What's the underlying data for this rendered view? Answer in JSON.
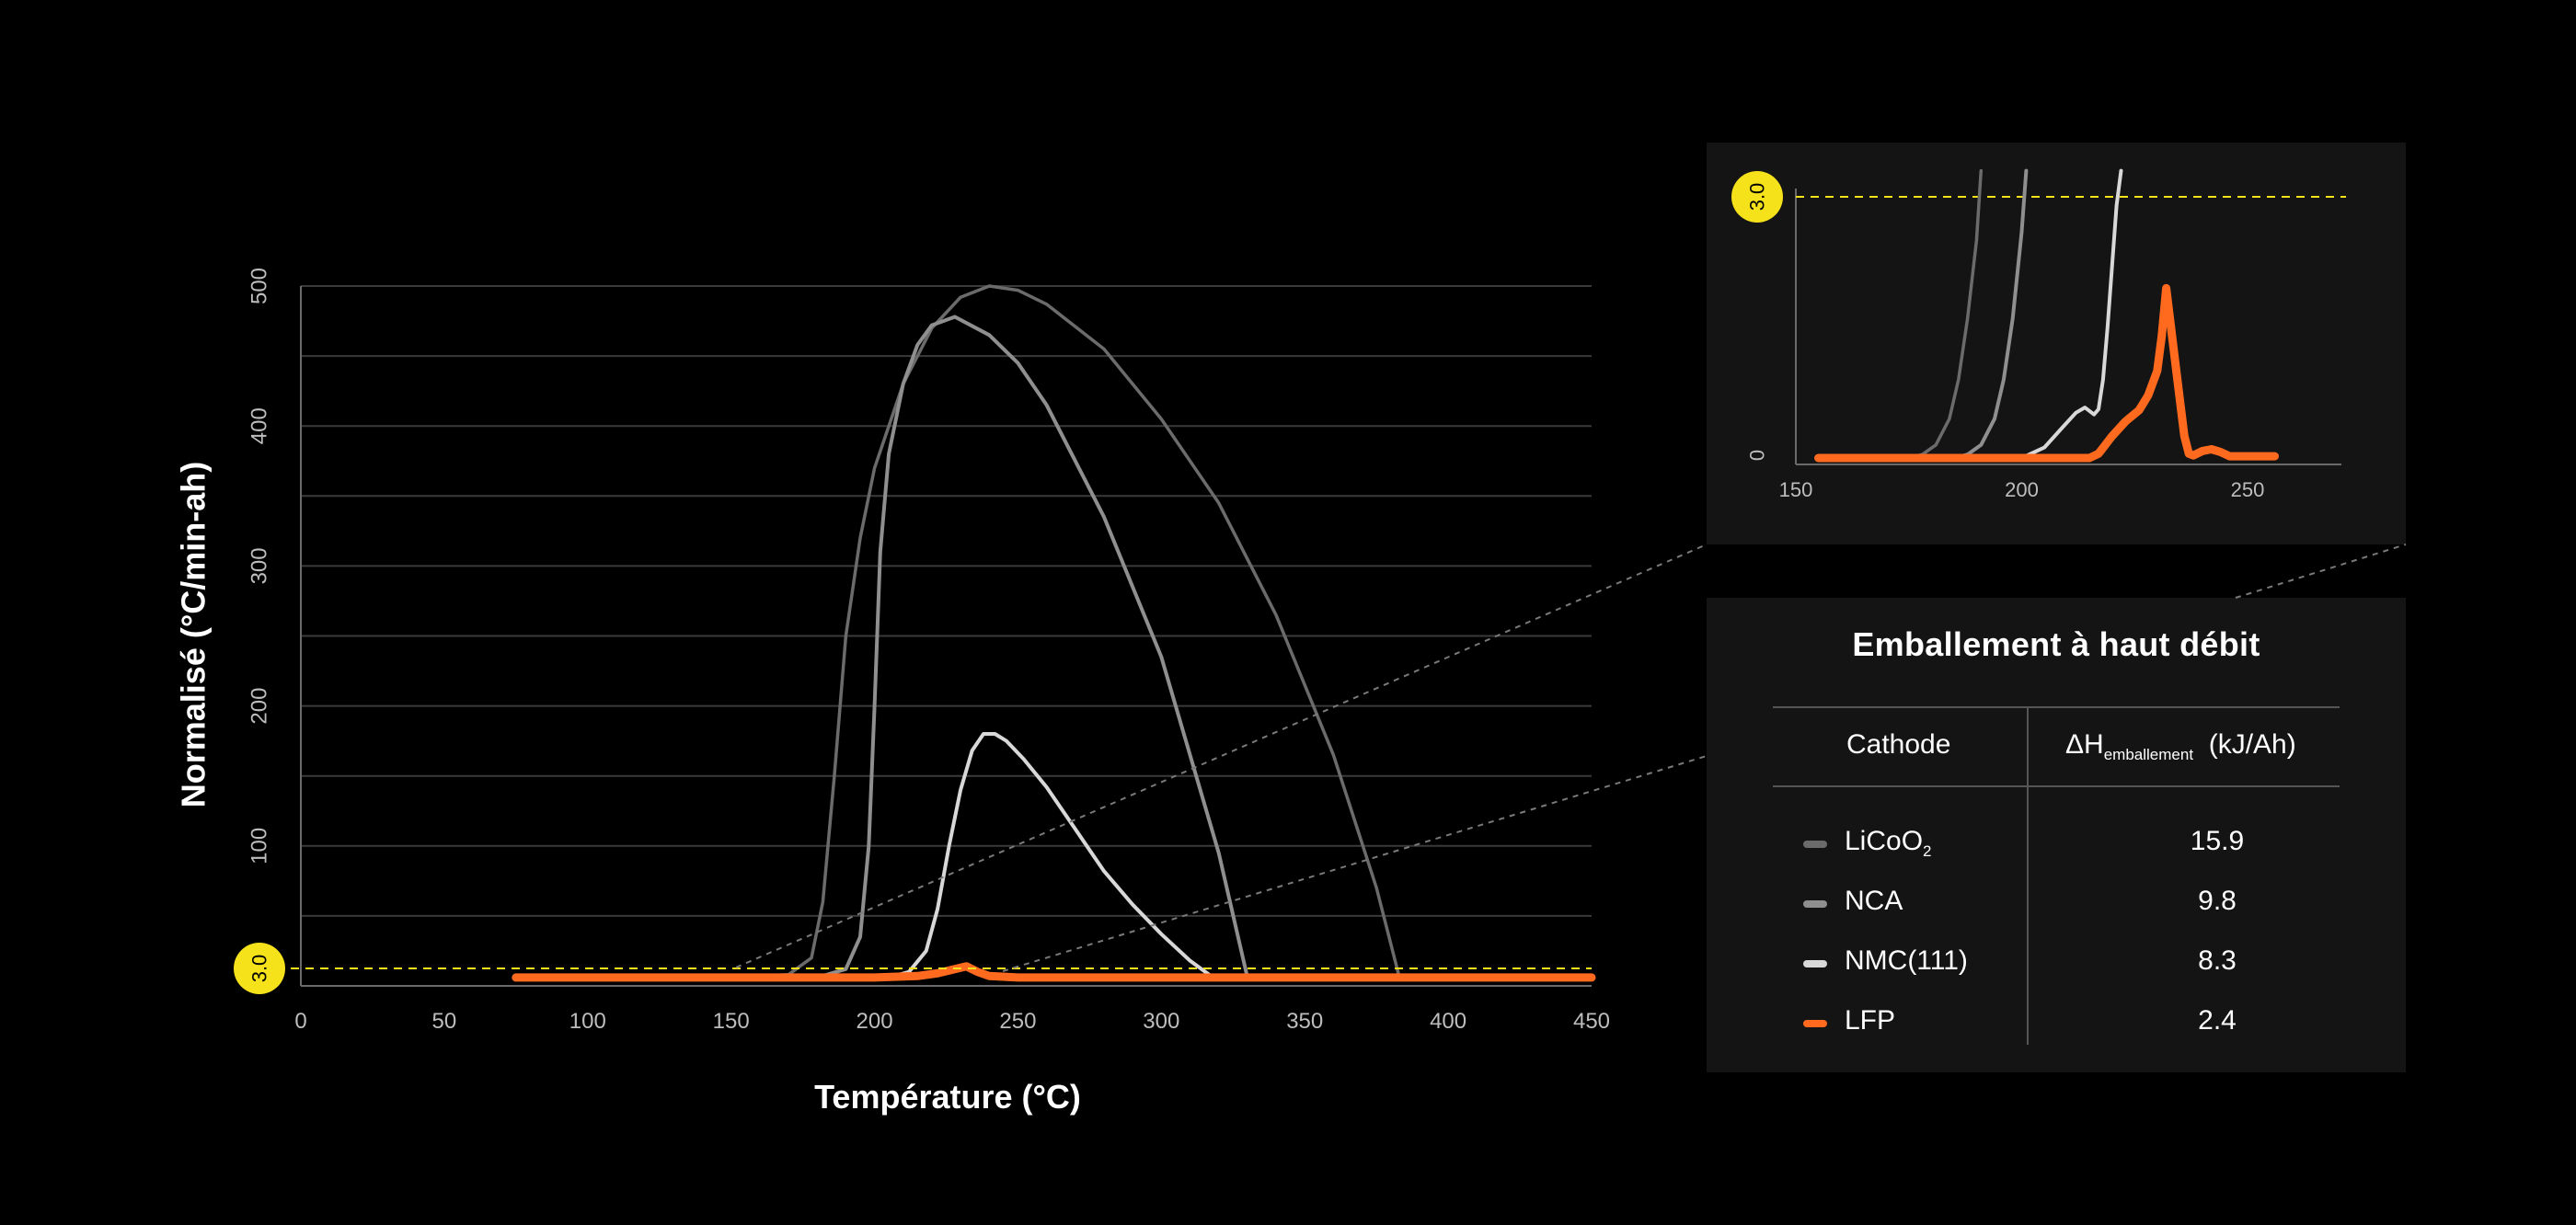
{
  "colors": {
    "background": "#000000",
    "panel": "#141414",
    "licoo2": "#6b6b6b",
    "nca": "#8f8f8f",
    "nmc": "#d8d8d8",
    "lfp": "#ff6a1f",
    "threshold": "#f5e21b"
  },
  "chart_data": [
    {
      "type": "line",
      "xlabel": "Température (°C)",
      "ylabel": "Normalisé (°C/min-ah)",
      "xlim": [
        0,
        450
      ],
      "ylim": [
        0,
        500
      ],
      "xticks": [
        "0",
        "50",
        "100",
        "150",
        "200",
        "250",
        "300",
        "350",
        "400",
        "450"
      ],
      "yticks": [
        "100",
        "200",
        "300",
        "400",
        "500"
      ],
      "grid": true,
      "threshold": {
        "value": 3.0,
        "label": "3.0"
      },
      "series": [
        {
          "name": "LiCoO2",
          "color": "#6b6b6b",
          "x": [
            75,
            150,
            170,
            178,
            182,
            186,
            190,
            195,
            200,
            210,
            220,
            230,
            240,
            250,
            260,
            280,
            300,
            320,
            340,
            360,
            375,
            383,
            390,
            420,
            450
          ],
          "y": [
            6,
            6,
            8,
            20,
            60,
            150,
            250,
            320,
            370,
            430,
            470,
            492,
            500,
            497,
            487,
            455,
            405,
            345,
            265,
            165,
            70,
            6,
            6,
            6,
            6
          ]
        },
        {
          "name": "NCA",
          "color": "#8f8f8f",
          "x": [
            75,
            180,
            190,
            195,
            198,
            200,
            202,
            205,
            210,
            215,
            220,
            228,
            240,
            250,
            260,
            280,
            300,
            320,
            330,
            340,
            380,
            450
          ],
          "y": [
            6,
            6,
            12,
            35,
            100,
            200,
            310,
            380,
            430,
            458,
            472,
            478,
            465,
            445,
            415,
            335,
            235,
            95,
            6,
            6,
            6,
            6
          ]
        },
        {
          "name": "NMC(111)",
          "color": "#d8d8d8",
          "x": [
            75,
            205,
            212,
            218,
            222,
            226,
            230,
            234,
            238,
            242,
            246,
            252,
            260,
            270,
            280,
            290,
            300,
            310,
            318,
            325,
            400,
            450
          ],
          "y": [
            6,
            6,
            10,
            25,
            55,
            100,
            140,
            168,
            180,
            180,
            175,
            162,
            142,
            112,
            82,
            58,
            37,
            18,
            6,
            6,
            6,
            6
          ]
        },
        {
          "name": "LFP",
          "color": "#ff6a1f",
          "x": [
            75,
            200,
            215,
            222,
            228,
            232,
            236,
            240,
            250,
            300,
            400,
            450
          ],
          "y": [
            6,
            6,
            7,
            9,
            12,
            14,
            10,
            7,
            6,
            6,
            6,
            6
          ]
        }
      ]
    },
    {
      "type": "line",
      "xlim": [
        150,
        260
      ],
      "ylim": [
        0,
        3.0
      ],
      "xticks": [
        "150",
        "200",
        "250"
      ],
      "yticks": [
        "0"
      ],
      "threshold": {
        "value": 3.0,
        "label": "3.0"
      },
      "series": [
        {
          "name": "LiCoO2",
          "color": "#6b6b6b",
          "x": [
            155,
            175,
            178,
            181,
            184,
            186,
            188,
            190,
            191
          ],
          "y": [
            0,
            0,
            0.04,
            0.15,
            0.45,
            0.9,
            1.6,
            2.5,
            3.3
          ]
        },
        {
          "name": "NCA",
          "color": "#8f8f8f",
          "x": [
            155,
            185,
            188,
            191,
            194,
            196,
            198,
            200,
            201
          ],
          "y": [
            0,
            0,
            0.04,
            0.15,
            0.45,
            0.9,
            1.6,
            2.6,
            3.3
          ]
        },
        {
          "name": "NMC(111)",
          "color": "#d8d8d8",
          "x": [
            155,
            200,
            205,
            209,
            212,
            214,
            216,
            217,
            218,
            219,
            220,
            221,
            222
          ],
          "y": [
            0,
            0,
            0.12,
            0.35,
            0.52,
            0.58,
            0.5,
            0.56,
            0.9,
            1.5,
            2.2,
            2.9,
            3.3
          ]
        },
        {
          "name": "LFP",
          "color": "#ff6a1f",
          "x": [
            155,
            215,
            217,
            220,
            223,
            226,
            228,
            230,
            231,
            232,
            234,
            236,
            237,
            238,
            240,
            242,
            244,
            246,
            248,
            252,
            256
          ],
          "y": [
            0,
            0,
            0.05,
            0.25,
            0.42,
            0.55,
            0.72,
            1.0,
            1.4,
            1.95,
            1.1,
            0.25,
            0.05,
            0.03,
            0.08,
            0.1,
            0.07,
            0.02,
            0.02,
            0.02,
            0.02
          ]
        }
      ]
    }
  ],
  "table": {
    "title": "Emballement à haut débit",
    "col1_header": "Cathode",
    "col2_header_prefix": "ΔH",
    "col2_header_sub": "emballement",
    "col2_header_suffix": "(kJ/Ah)",
    "rows": [
      {
        "cathode": "LiCoO",
        "cathode_sub": "2",
        "value": "15.9",
        "color": "#6b6b6b"
      },
      {
        "cathode": "NCA",
        "cathode_sub": "",
        "value": "9.8",
        "color": "#8f8f8f"
      },
      {
        "cathode": "NMC(111)",
        "cathode_sub": "",
        "value": "8.3",
        "color": "#d8d8d8"
      },
      {
        "cathode": "LFP",
        "cathode_sub": "",
        "value": "2.4",
        "color": "#ff6a1f"
      }
    ]
  }
}
